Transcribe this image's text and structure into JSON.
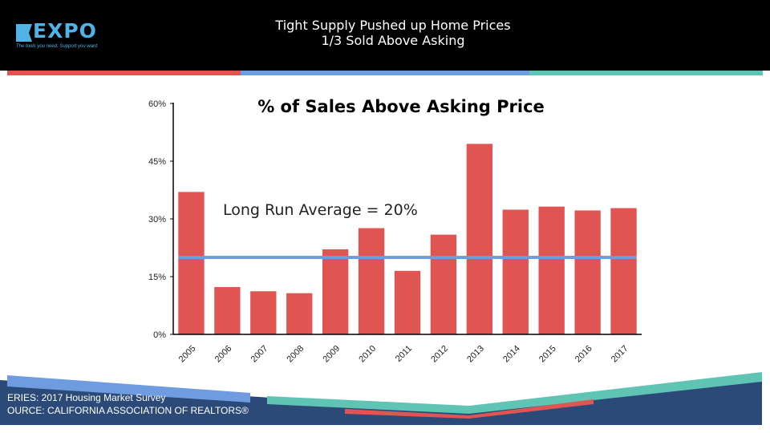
{
  "header": {
    "title_line1": "Tight Supply Pushed up Home Prices",
    "title_line2": "1/3 Sold Above Asking",
    "logo_text": "EXPO",
    "logo_tagline": "The tools you need. Support you want."
  },
  "footer": {
    "series_label": "ERIES: 2017 Housing Market Survey",
    "source_label": "OURCE:  CALIFORNIA ASSOCIATION OF REALTORS®"
  },
  "colors": {
    "bar": "#e05552",
    "average_line": "#6f9be0",
    "stripe_red": "#e05552",
    "stripe_blue": "#6f9be0",
    "stripe_teal": "#5fc4b4",
    "footer_navy": "#2b4a78"
  },
  "chart_data": {
    "type": "bar",
    "title": "% of Sales Above Asking Price",
    "categories": [
      "2005",
      "2006",
      "2007",
      "2008",
      "2009",
      "2010",
      "2011",
      "2012",
      "2013",
      "2014",
      "2015",
      "2016",
      "2017"
    ],
    "values": [
      37.0,
      12.3,
      11.2,
      10.7,
      22.1,
      27.6,
      16.5,
      25.9,
      49.5,
      32.4,
      33.2,
      32.2,
      32.8
    ],
    "ylim": [
      0,
      60
    ],
    "yticks": [
      "0%",
      "15%",
      "30%",
      "45%",
      "60%"
    ],
    "average": {
      "value": 20,
      "label": "Long Run Average = 20%"
    },
    "grid": false
  }
}
